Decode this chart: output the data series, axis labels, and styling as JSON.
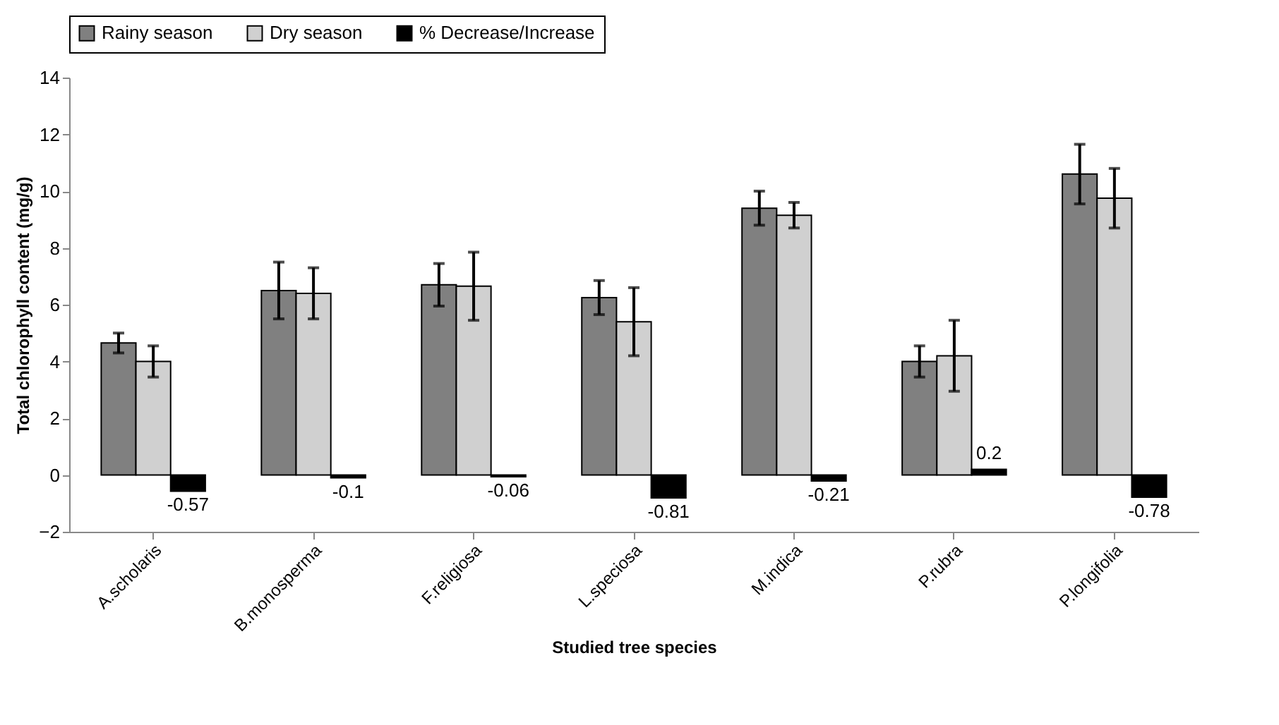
{
  "chart_data": {
    "type": "bar",
    "xlabel": "Studied tree species",
    "ylabel": "Total chlorophyll content (mg/g)",
    "categories": [
      "A.scholaris",
      "B.monosperma",
      "F.religiosa",
      "L.speciosa",
      "M.indica",
      "P.rubra",
      "P.longifolia"
    ],
    "series": [
      {
        "name": "Rainy season",
        "color": "#808080",
        "values": [
          4.65,
          6.5,
          6.7,
          6.25,
          9.4,
          4.0,
          10.6
        ],
        "errors": [
          0.35,
          1.0,
          0.75,
          0.6,
          0.6,
          0.55,
          1.05
        ]
      },
      {
        "name": "Dry season",
        "color": "#d0d0d0",
        "values": [
          4.0,
          6.4,
          6.65,
          5.4,
          9.15,
          4.2,
          9.75
        ],
        "errors": [
          0.55,
          0.9,
          1.2,
          1.2,
          0.45,
          1.25,
          1.05
        ]
      },
      {
        "name": "% Decrease/Increase",
        "color": "#000000",
        "values": [
          -0.57,
          -0.1,
          -0.06,
          -0.81,
          -0.21,
          0.2,
          -0.78
        ],
        "value_labels": [
          "-0.57",
          "-0.1",
          "-0.06",
          "-0.81",
          "-0.21",
          "0.2",
          "-0.78"
        ]
      }
    ],
    "ylim": [
      -2,
      14
    ],
    "yticks": [
      -2,
      0,
      2,
      4,
      6,
      8,
      10,
      12,
      14
    ],
    "grid": false,
    "legend": "top"
  }
}
